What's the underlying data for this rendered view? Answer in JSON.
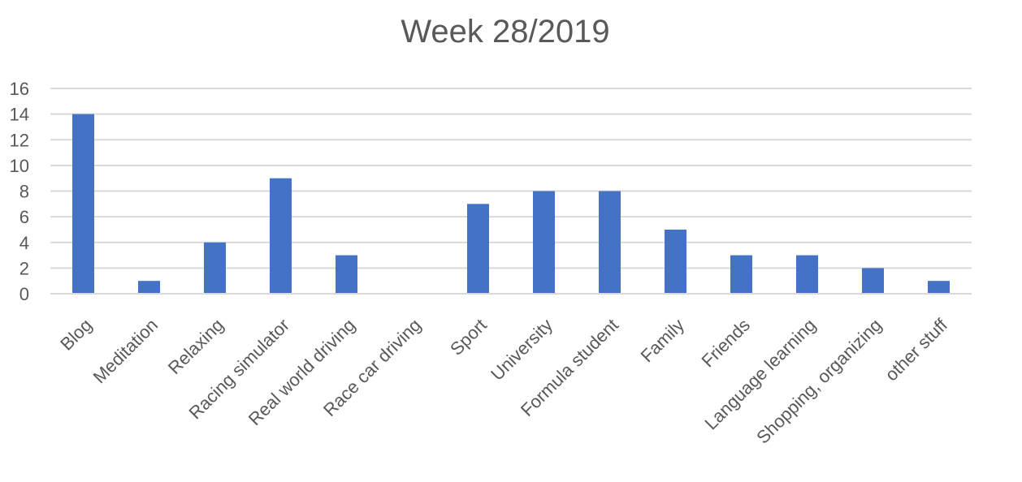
{
  "chart_data": {
    "type": "bar",
    "title": "Week 28/2019",
    "xlabel": "",
    "ylabel": "",
    "categories": [
      "Blog",
      "Meditation",
      "Relaxing",
      "Racing simulator",
      "Real world driving",
      "Race car driving",
      "Sport",
      "University",
      "Formula student",
      "Family",
      "Friends",
      "Language learning",
      "Shopping, organizing",
      "other stuff"
    ],
    "values": [
      14,
      1,
      4,
      9,
      3,
      0,
      7,
      8,
      8,
      5,
      3,
      3,
      2,
      1
    ],
    "ylim": [
      0,
      16
    ],
    "yticks": [
      0,
      2,
      4,
      6,
      8,
      10,
      12,
      14,
      16
    ],
    "grid": true,
    "legend": "none",
    "bar_color": "#4472c4"
  }
}
